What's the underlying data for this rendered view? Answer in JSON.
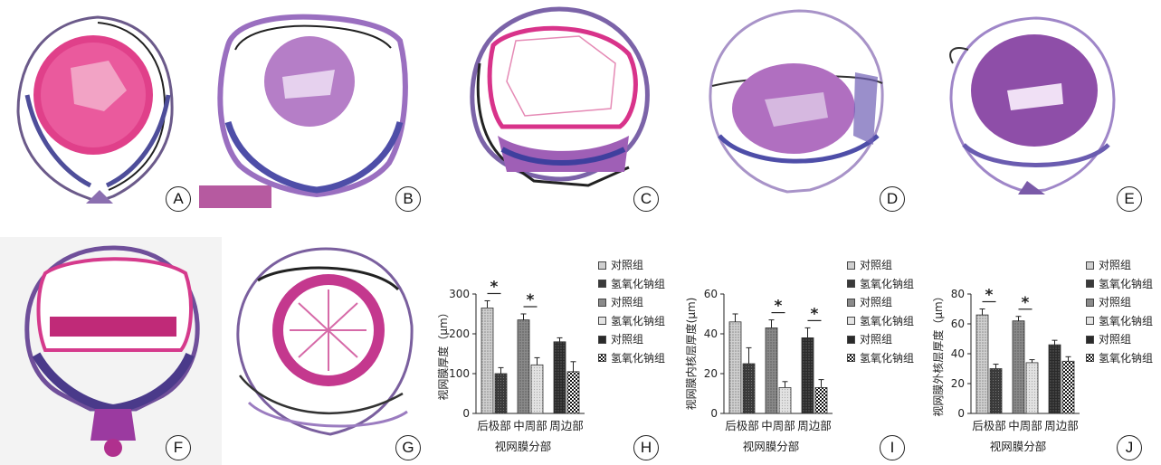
{
  "panel_labels": [
    "A",
    "B",
    "C",
    "D",
    "E",
    "F",
    "G",
    "H",
    "I",
    "J"
  ],
  "legend_items": [
    "对照组",
    "氢氧化钠组",
    "对照组",
    "氢氧化钠组",
    "对照组",
    "氢氧化钠组"
  ],
  "chart_data": [
    {
      "type": "bar",
      "panel": "H",
      "categories": [
        "后极部",
        "中周部",
        "周边部"
      ],
      "series": [
        {
          "name": "对照组",
          "values": [
            265,
            235,
            180
          ],
          "errors": [
            18,
            15,
            10
          ]
        },
        {
          "name": "氢氧化钠组",
          "values": [
            100,
            122,
            105
          ],
          "errors": [
            15,
            18,
            25
          ]
        }
      ],
      "ylabel": "视网膜厚度（μm）",
      "xlabel": "视网膜分部",
      "ylim": [
        0,
        300
      ],
      "yticks": [
        0,
        100,
        200,
        300
      ],
      "significance": [
        "*",
        "*",
        ""
      ]
    },
    {
      "type": "bar",
      "panel": "I",
      "categories": [
        "后极部",
        "中周部",
        "周边部"
      ],
      "series": [
        {
          "name": "对照组",
          "values": [
            46,
            43,
            38
          ],
          "errors": [
            4,
            4,
            5
          ]
        },
        {
          "name": "氢氧化钠组",
          "values": [
            25,
            13,
            13
          ],
          "errors": [
            8,
            3,
            4
          ]
        }
      ],
      "ylabel": "视网膜内核层厚度(μm)",
      "xlabel": "视网膜分部",
      "ylim": [
        0,
        60
      ],
      "yticks": [
        0,
        20,
        40,
        60
      ],
      "significance": [
        "",
        "*",
        "*"
      ]
    },
    {
      "type": "bar",
      "panel": "J",
      "categories": [
        "后极部",
        "中周部",
        "周边部"
      ],
      "series": [
        {
          "name": "对照组",
          "values": [
            66,
            62,
            46
          ],
          "errors": [
            4,
            3,
            3
          ]
        },
        {
          "name": "氢氧化钠组",
          "values": [
            30,
            34,
            35
          ],
          "errors": [
            3,
            2,
            3
          ]
        }
      ],
      "ylabel": "视网膜外核层厚度（μm）",
      "xlabel": "视网膜分部",
      "ylim": [
        0,
        80
      ],
      "yticks": [
        0,
        20,
        40,
        60,
        80
      ],
      "significance": [
        "*",
        "*",
        ""
      ]
    }
  ]
}
